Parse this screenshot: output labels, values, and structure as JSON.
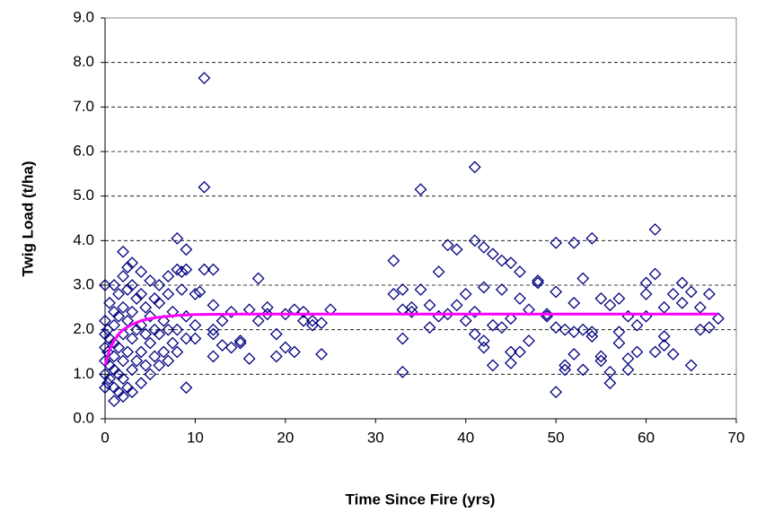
{
  "chart_data": {
    "type": "scatter",
    "xlabel": "Time Since Fire (yrs)",
    "ylabel": "Twig Load (t/ha)",
    "xlim": [
      0,
      70
    ],
    "xticks": [
      0,
      10,
      20,
      30,
      40,
      50,
      60,
      70
    ],
    "ylim": [
      0,
      9
    ],
    "yticks": [
      {
        "value": 0,
        "label": "0.0"
      },
      {
        "value": 1,
        "label": "1.0"
      },
      {
        "value": 2,
        "label": "2.0"
      },
      {
        "value": 3,
        "label": "3.0"
      },
      {
        "value": 4,
        "label": "4.0"
      },
      {
        "value": 5,
        "label": "5.0"
      },
      {
        "value": 6,
        "label": "6.0"
      },
      {
        "value": 7,
        "label": "7.0"
      },
      {
        "value": 8,
        "label": "8.0"
      },
      {
        "value": 9,
        "label": "9.0"
      }
    ],
    "grid": true,
    "series": [
      {
        "type": "scatter",
        "color": "#000080",
        "x": [
          0,
          0,
          0,
          0,
          0,
          0,
          0,
          0.3,
          0.3,
          0.3,
          0.5,
          0.5,
          0.5,
          0.5,
          1,
          1,
          1,
          1,
          1,
          1,
          1,
          1,
          1.5,
          1.5,
          1.5,
          1.5,
          1.5,
          2,
          2,
          2,
          2,
          2,
          2,
          2,
          2.5,
          2.5,
          2.5,
          2.5,
          2.5,
          3,
          3,
          3,
          3,
          3,
          3,
          3.5,
          3.5,
          3.5,
          4,
          4,
          4,
          4,
          4,
          4.5,
          4.5,
          4.5,
          5,
          5,
          5,
          5,
          5.5,
          5.5,
          5.5,
          6,
          6,
          6,
          6,
          6.5,
          6.5,
          7,
          7,
          7,
          7,
          7.5,
          7.5,
          8,
          8,
          8,
          8,
          8.5,
          8.5,
          9,
          9,
          9,
          9,
          9,
          10,
          10,
          10,
          10.5,
          11,
          11,
          11,
          12,
          12,
          12,
          12,
          12,
          13,
          13,
          14,
          14,
          15,
          15,
          16,
          16,
          17,
          17,
          18,
          18,
          19,
          19,
          20,
          20,
          21,
          21,
          22,
          22,
          23,
          23,
          24,
          24,
          25,
          32,
          32,
          33,
          33,
          33,
          33,
          34,
          34,
          35,
          35,
          36,
          36,
          37,
          37,
          38,
          38,
          39,
          39,
          40,
          40,
          41,
          41,
          41,
          41,
          42,
          42,
          42,
          42,
          43,
          43,
          43,
          44,
          44,
          44,
          45,
          45,
          45,
          45,
          46,
          46,
          46,
          47,
          47,
          48,
          48,
          49,
          49,
          50,
          50,
          50,
          50,
          51,
          51,
          51,
          52,
          52,
          52,
          52,
          53,
          53,
          53,
          54,
          54,
          54,
          55,
          55,
          55,
          56,
          56,
          56,
          57,
          57,
          57,
          58,
          58,
          58,
          59,
          59,
          60,
          60,
          60,
          61,
          61,
          61,
          62,
          62,
          62,
          63,
          63,
          64,
          64,
          65,
          65,
          66,
          66,
          67,
          67,
          68
        ],
        "values": [
          0.7,
          1.0,
          1.3,
          1.6,
          1.9,
          2.2,
          3.0,
          0.8,
          1.5,
          2.0,
          0.9,
          1.2,
          1.8,
          2.6,
          0.4,
          0.7,
          1.1,
          1.4,
          1.7,
          2.1,
          2.4,
          3.0,
          0.6,
          1.0,
          1.6,
          2.3,
          2.8,
          0.5,
          0.9,
          1.3,
          1.9,
          2.5,
          3.2,
          3.75,
          0.7,
          1.5,
          2.2,
          2.9,
          3.4,
          0.6,
          1.1,
          1.8,
          2.4,
          3.0,
          3.5,
          1.3,
          2.0,
          2.7,
          0.8,
          1.5,
          2.1,
          2.8,
          3.3,
          1.2,
          1.9,
          2.5,
          1.0,
          1.7,
          2.3,
          3.1,
          1.4,
          2.0,
          2.7,
          1.2,
          1.9,
          2.6,
          3.0,
          1.5,
          2.2,
          1.3,
          2.0,
          2.8,
          3.2,
          1.7,
          2.4,
          4.05,
          3.35,
          2.0,
          1.5,
          2.9,
          3.3,
          0.7,
          1.8,
          2.3,
          3.8,
          3.35,
          2.8,
          1.8,
          2.1,
          2.85,
          7.65,
          5.2,
          3.35,
          3.35,
          2.0,
          1.9,
          1.4,
          2.55,
          1.65,
          2.2,
          2.4,
          1.6,
          1.75,
          1.7,
          2.45,
          1.35,
          3.15,
          2.2,
          2.5,
          2.35,
          1.9,
          1.4,
          1.6,
          2.35,
          2.45,
          1.5,
          2.4,
          2.2,
          2.2,
          2.1,
          1.45,
          2.15,
          2.45,
          3.55,
          2.8,
          2.9,
          1.8,
          1.05,
          2.45,
          2.5,
          2.4,
          5.15,
          2.9,
          2.55,
          2.05,
          3.3,
          2.3,
          3.9,
          2.35,
          3.8,
          2.55,
          2.8,
          2.2,
          5.65,
          4.0,
          1.9,
          2.4,
          3.85,
          1.75,
          1.6,
          2.95,
          3.7,
          2.1,
          1.2,
          3.55,
          2.9,
          2.05,
          3.5,
          1.5,
          1.25,
          2.25,
          3.3,
          2.7,
          1.5,
          1.75,
          2.45,
          3.05,
          3.1,
          2.35,
          2.3,
          3.95,
          2.85,
          2.05,
          0.6,
          1.1,
          1.2,
          2.0,
          3.95,
          2.6,
          1.95,
          1.45,
          3.15,
          2.0,
          1.1,
          4.05,
          1.85,
          1.95,
          2.7,
          1.4,
          1.3,
          2.55,
          1.05,
          0.8,
          2.7,
          1.95,
          1.7,
          1.35,
          1.1,
          2.3,
          2.1,
          1.5,
          3.05,
          2.8,
          2.3,
          4.25,
          3.25,
          1.5,
          2.5,
          1.85,
          1.65,
          2.8,
          1.45,
          3.05,
          2.6,
          2.85,
          1.2,
          2.0,
          2.5,
          2.8,
          2.05,
          2.25
        ]
      },
      {
        "type": "line",
        "color": "#ff00ff",
        "x": [
          0,
          0.5,
          1,
          1.5,
          2,
          3,
          4,
          5,
          6,
          7,
          8,
          10,
          15,
          20,
          30,
          40,
          50,
          60,
          68
        ],
        "values": [
          1.2,
          1.55,
          1.75,
          1.9,
          2.0,
          2.12,
          2.2,
          2.25,
          2.28,
          2.3,
          2.32,
          2.34,
          2.35,
          2.35,
          2.35,
          2.35,
          2.35,
          2.35,
          2.35
        ]
      }
    ]
  }
}
